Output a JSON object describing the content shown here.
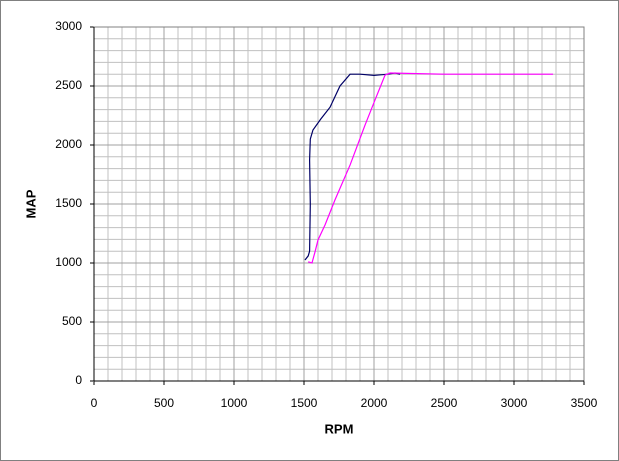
{
  "chart_data": {
    "type": "line",
    "xlabel": "RPM",
    "ylabel": "MAP",
    "xlim": [
      0,
      3500
    ],
    "xticks": [
      0,
      500,
      1000,
      1500,
      2000,
      2500,
      3000,
      3500
    ],
    "ylim": [
      0,
      3000
    ],
    "yticks": [
      0,
      500,
      1000,
      1500,
      2000,
      2500,
      3000
    ],
    "grid": true,
    "minor_step": 100,
    "series": [
      {
        "color": "#000066",
        "x": [
          1507,
          1530,
          1540,
          1545,
          1540,
          1545,
          1564,
          1620,
          1686,
          1757,
          1829,
          1900,
          2000,
          2100,
          2150,
          2186
        ],
        "values": [
          1025,
          1060,
          1100,
          1500,
          1873,
          2050,
          2127,
          2220,
          2320,
          2500,
          2600,
          2600,
          2590,
          2600,
          2610,
          2600
        ]
      },
      {
        "color": "#ff00ff",
        "x": [
          1530,
          1557,
          1580,
          1600,
          1650,
          1721,
          1829,
          1936,
          2007,
          2079,
          2114,
          2500,
          3000,
          3279
        ],
        "values": [
          1010,
          1000,
          1100,
          1195,
          1322,
          1534,
          1830,
          2169,
          2381,
          2593,
          2610,
          2600,
          2600,
          2600
        ]
      }
    ]
  }
}
